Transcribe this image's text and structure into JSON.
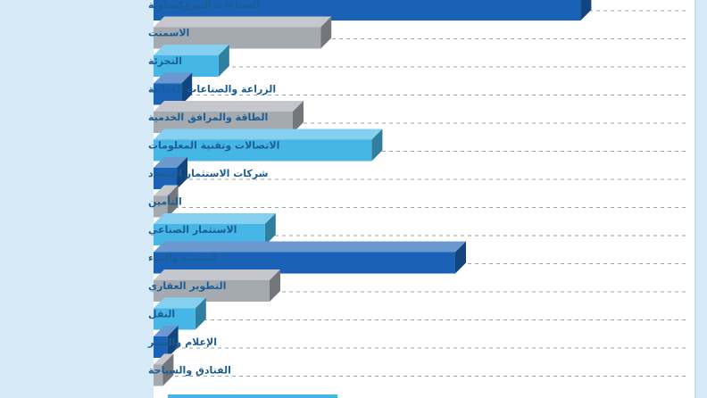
{
  "chart_data": {
    "type": "bar",
    "orientation": "horizontal",
    "categories": [
      "الصناعات البتروكيماوية",
      "الاسمنت",
      "التجزئة",
      "الزراعة والصناعات الغذائية",
      "الطاقة والمرافق الخدمية",
      "الاتصالات وتقنية المعلومات",
      "شركات الاستثمار المتعدد",
      "التأمين",
      "الاستثمار الصناعي",
      "التشييد والبناء",
      "التطوير العقاري",
      "النقل",
      "الإعلام والنشر",
      "الفنادق والسياحة"
    ],
    "values": [
      92,
      36,
      14,
      6,
      30,
      47,
      5,
      3,
      24,
      65,
      25,
      9,
      3,
      2
    ],
    "bar_colors": [
      "#1a62b5",
      "#a5a9b0",
      "#45b6e6",
      "#1a62b5",
      "#a5a9b0",
      "#45b6e6",
      "#1a62b5",
      "#a5a9b0",
      "#45b6e6",
      "#1a62b5",
      "#a5a9b0",
      "#45b6e6",
      "#1a62b5",
      "#a5a9b0"
    ],
    "xlim": [
      0,
      100
    ],
    "grid": "dashed horizontal",
    "label_color": "#1c5d93",
    "label_panel_color": "#d6ebf7",
    "frame_color": "#1b7cc4"
  }
}
